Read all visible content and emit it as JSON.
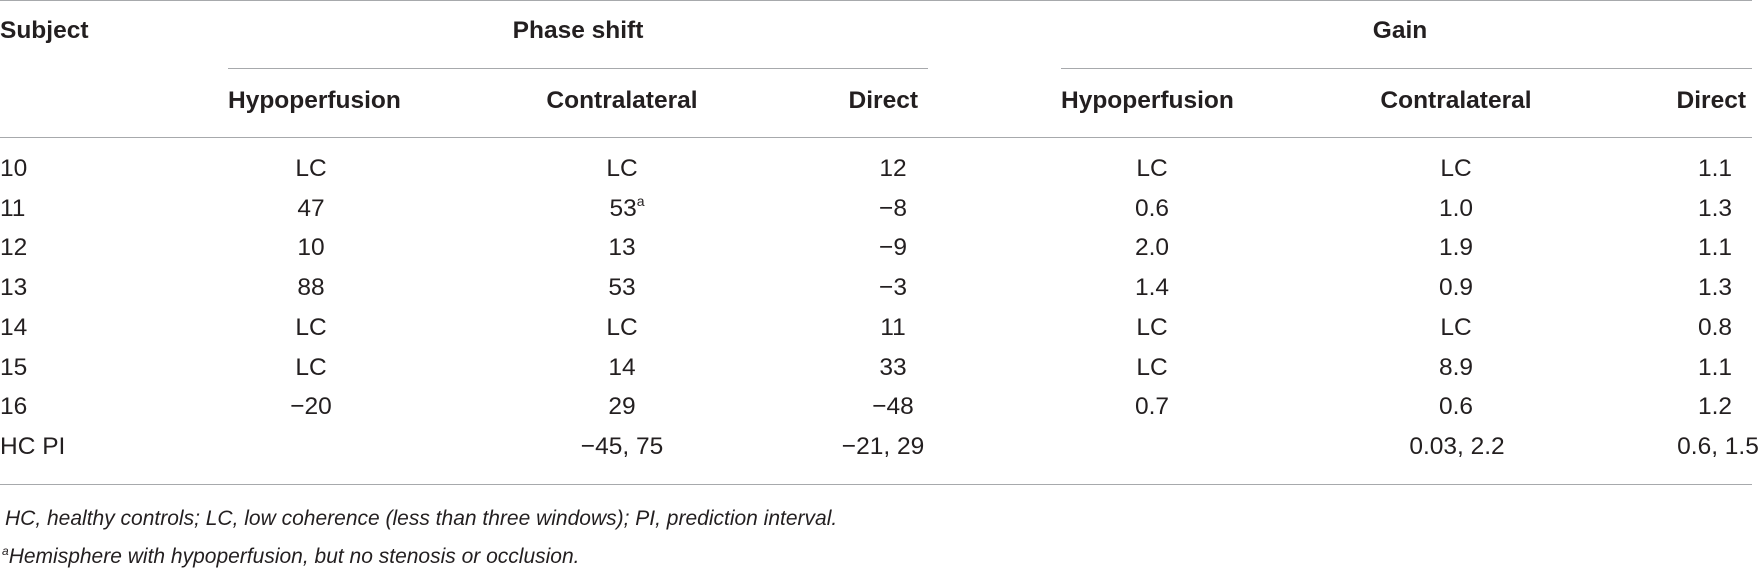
{
  "table": {
    "header": {
      "subject": "Subject",
      "group_phase": "Phase shift",
      "group_gain": "Gain",
      "cols": [
        "Hypoperfusion",
        "Contralateral",
        "Direct",
        "Hypoperfusion",
        "Contralateral",
        "Direct"
      ]
    },
    "rows": [
      {
        "subject": "10",
        "cells": [
          "LC",
          "LC",
          "12",
          "LC",
          "LC",
          "1.1"
        ]
      },
      {
        "subject": "11",
        "cells": [
          "47",
          "53",
          "−8",
          "0.6",
          "1.0",
          "1.3"
        ],
        "mark": "a"
      },
      {
        "subject": "12",
        "cells": [
          "10",
          "13",
          "−9",
          "2.0",
          "1.9",
          "1.1"
        ]
      },
      {
        "subject": "13",
        "cells": [
          "88",
          "53",
          "−3",
          "1.4",
          "0.9",
          "1.3"
        ]
      },
      {
        "subject": "14",
        "cells": [
          "LC",
          "LC",
          "11",
          "LC",
          "LC",
          "0.8"
        ]
      },
      {
        "subject": "15",
        "cells": [
          "LC",
          "14",
          "33",
          "LC",
          "8.9",
          "1.1"
        ]
      },
      {
        "subject": "16",
        "cells": [
          "−20",
          "29",
          "−48",
          "0.7",
          "0.6",
          "1.2"
        ]
      },
      {
        "subject": "HC PI",
        "cells": [
          "",
          "−45, 75",
          "−21, 29",
          "",
          "0.03, 2.2",
          "0.6, 1.5"
        ]
      }
    ]
  },
  "footnotes": {
    "abbrev": "HC, healthy controls; LC, low coherence (less than three windows); PI, prediction interval.",
    "a_mark": "a",
    "a_text": "Hemisphere with hypoperfusion, but no stenosis or occlusion."
  }
}
